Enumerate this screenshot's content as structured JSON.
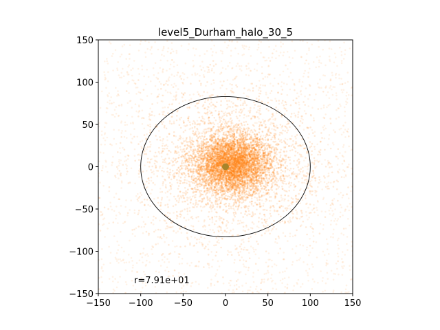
{
  "chart_data": {
    "type": "scatter",
    "title": "level5_Durham_halo_30_5",
    "xlabel": "",
    "ylabel": "",
    "xlim": [
      -150,
      150
    ],
    "ylim": [
      -150,
      150
    ],
    "xticks": [
      -150,
      -100,
      -50,
      0,
      50,
      100,
      150
    ],
    "yticks": [
      -150,
      -100,
      -50,
      0,
      50,
      100,
      150
    ],
    "xtick_labels": [
      "−150",
      "−100",
      "−50",
      "0",
      "50",
      "100",
      "150"
    ],
    "ytick_labels": [
      "−150",
      "−100",
      "−50",
      "0",
      "50",
      "100",
      "150"
    ],
    "grid": false,
    "point_color": "#ff7f0e",
    "center_marker_color": "#a7842a",
    "circle_color": "#000000",
    "center": [
      0,
      0
    ],
    "circle_radius_x": 100,
    "circle_radius_y": 83,
    "distribution": {
      "core_center": [
        8,
        3
      ],
      "core_sigma_x": 22,
      "core_sigma_y": 17,
      "halo_extent": 150
    },
    "annotation": "r=7.91e+01"
  }
}
